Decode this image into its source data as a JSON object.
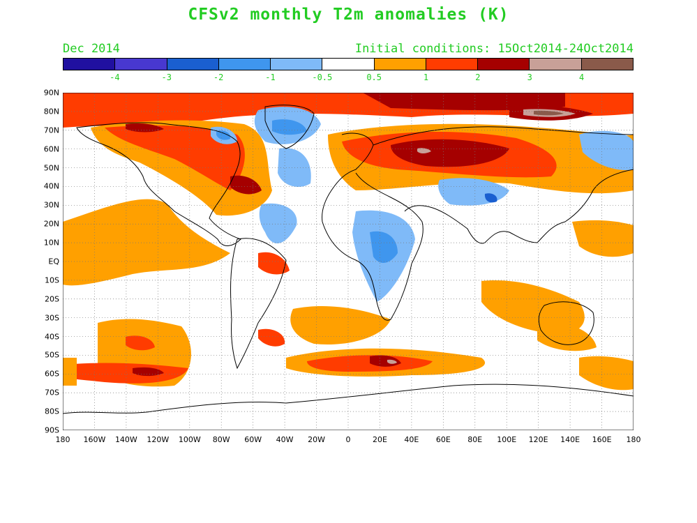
{
  "header": {
    "title": "CFSv2 monthly T2m anomalies (K)",
    "valid_month": "Dec 2014",
    "initial_conditions": "Initial conditions: 15Oct2014-24Oct2014"
  },
  "legend": {
    "colors": [
      "#2010a0",
      "#4838d0",
      "#1a5fd0",
      "#3f96ee",
      "#7fbaf8",
      "#ffffff",
      "#ffa000",
      "#ff3c00",
      "#a50000",
      "#c8a098",
      "#8a5a4a"
    ],
    "tick_labels": [
      "-4",
      "-3",
      "-2",
      "-1",
      "-0.5",
      "0.5",
      "1",
      "2",
      "3",
      "4"
    ]
  },
  "axes": {
    "lat_labels": [
      "90N",
      "80N",
      "70N",
      "60N",
      "50N",
      "40N",
      "30N",
      "20N",
      "10N",
      "EQ",
      "10S",
      "20S",
      "30S",
      "40S",
      "50S",
      "60S",
      "70S",
      "80S",
      "90S"
    ],
    "lon_labels": [
      "180",
      "160W",
      "140W",
      "120W",
      "100W",
      "80W",
      "60W",
      "40W",
      "20W",
      "0",
      "20E",
      "40E",
      "60E",
      "80E",
      "100E",
      "120E",
      "140E",
      "160E",
      "180"
    ]
  },
  "map": {
    "projection": "cylindrical equidistant",
    "grid": "dotted 10-degree graticule"
  }
}
